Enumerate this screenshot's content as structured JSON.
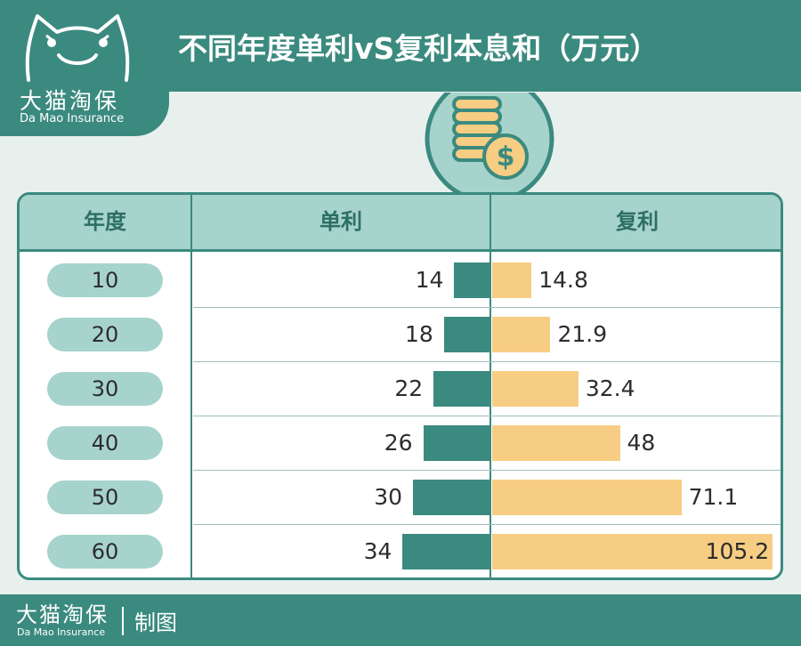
{
  "brand": {
    "name_cn": "大猫淘保",
    "name_en": "Da Mao Insurance"
  },
  "title": "不同年度单利vS复利本息和（万元）",
  "table": {
    "headers": [
      "年度",
      "单利",
      "复利"
    ]
  },
  "footer": {
    "brand_cn": "大猫淘保",
    "brand_en": "Da Mao Insurance",
    "made": "制图"
  },
  "colors": {
    "teal": "#3b8a7f",
    "light_teal": "#a7d3cd",
    "gold": "#f6cd82",
    "background": "#e8f0ee"
  },
  "chart_data": {
    "type": "bar",
    "title": "不同年度单利vS复利本息和（万元）",
    "categories": [
      "10",
      "20",
      "30",
      "40",
      "50",
      "60"
    ],
    "series": [
      {
        "name": "单利",
        "values": [
          14,
          18,
          22,
          26,
          30,
          34
        ]
      },
      {
        "name": "复利",
        "values": [
          14.8,
          21.9,
          32.4,
          48,
          71.1,
          105.2
        ]
      }
    ]
  }
}
